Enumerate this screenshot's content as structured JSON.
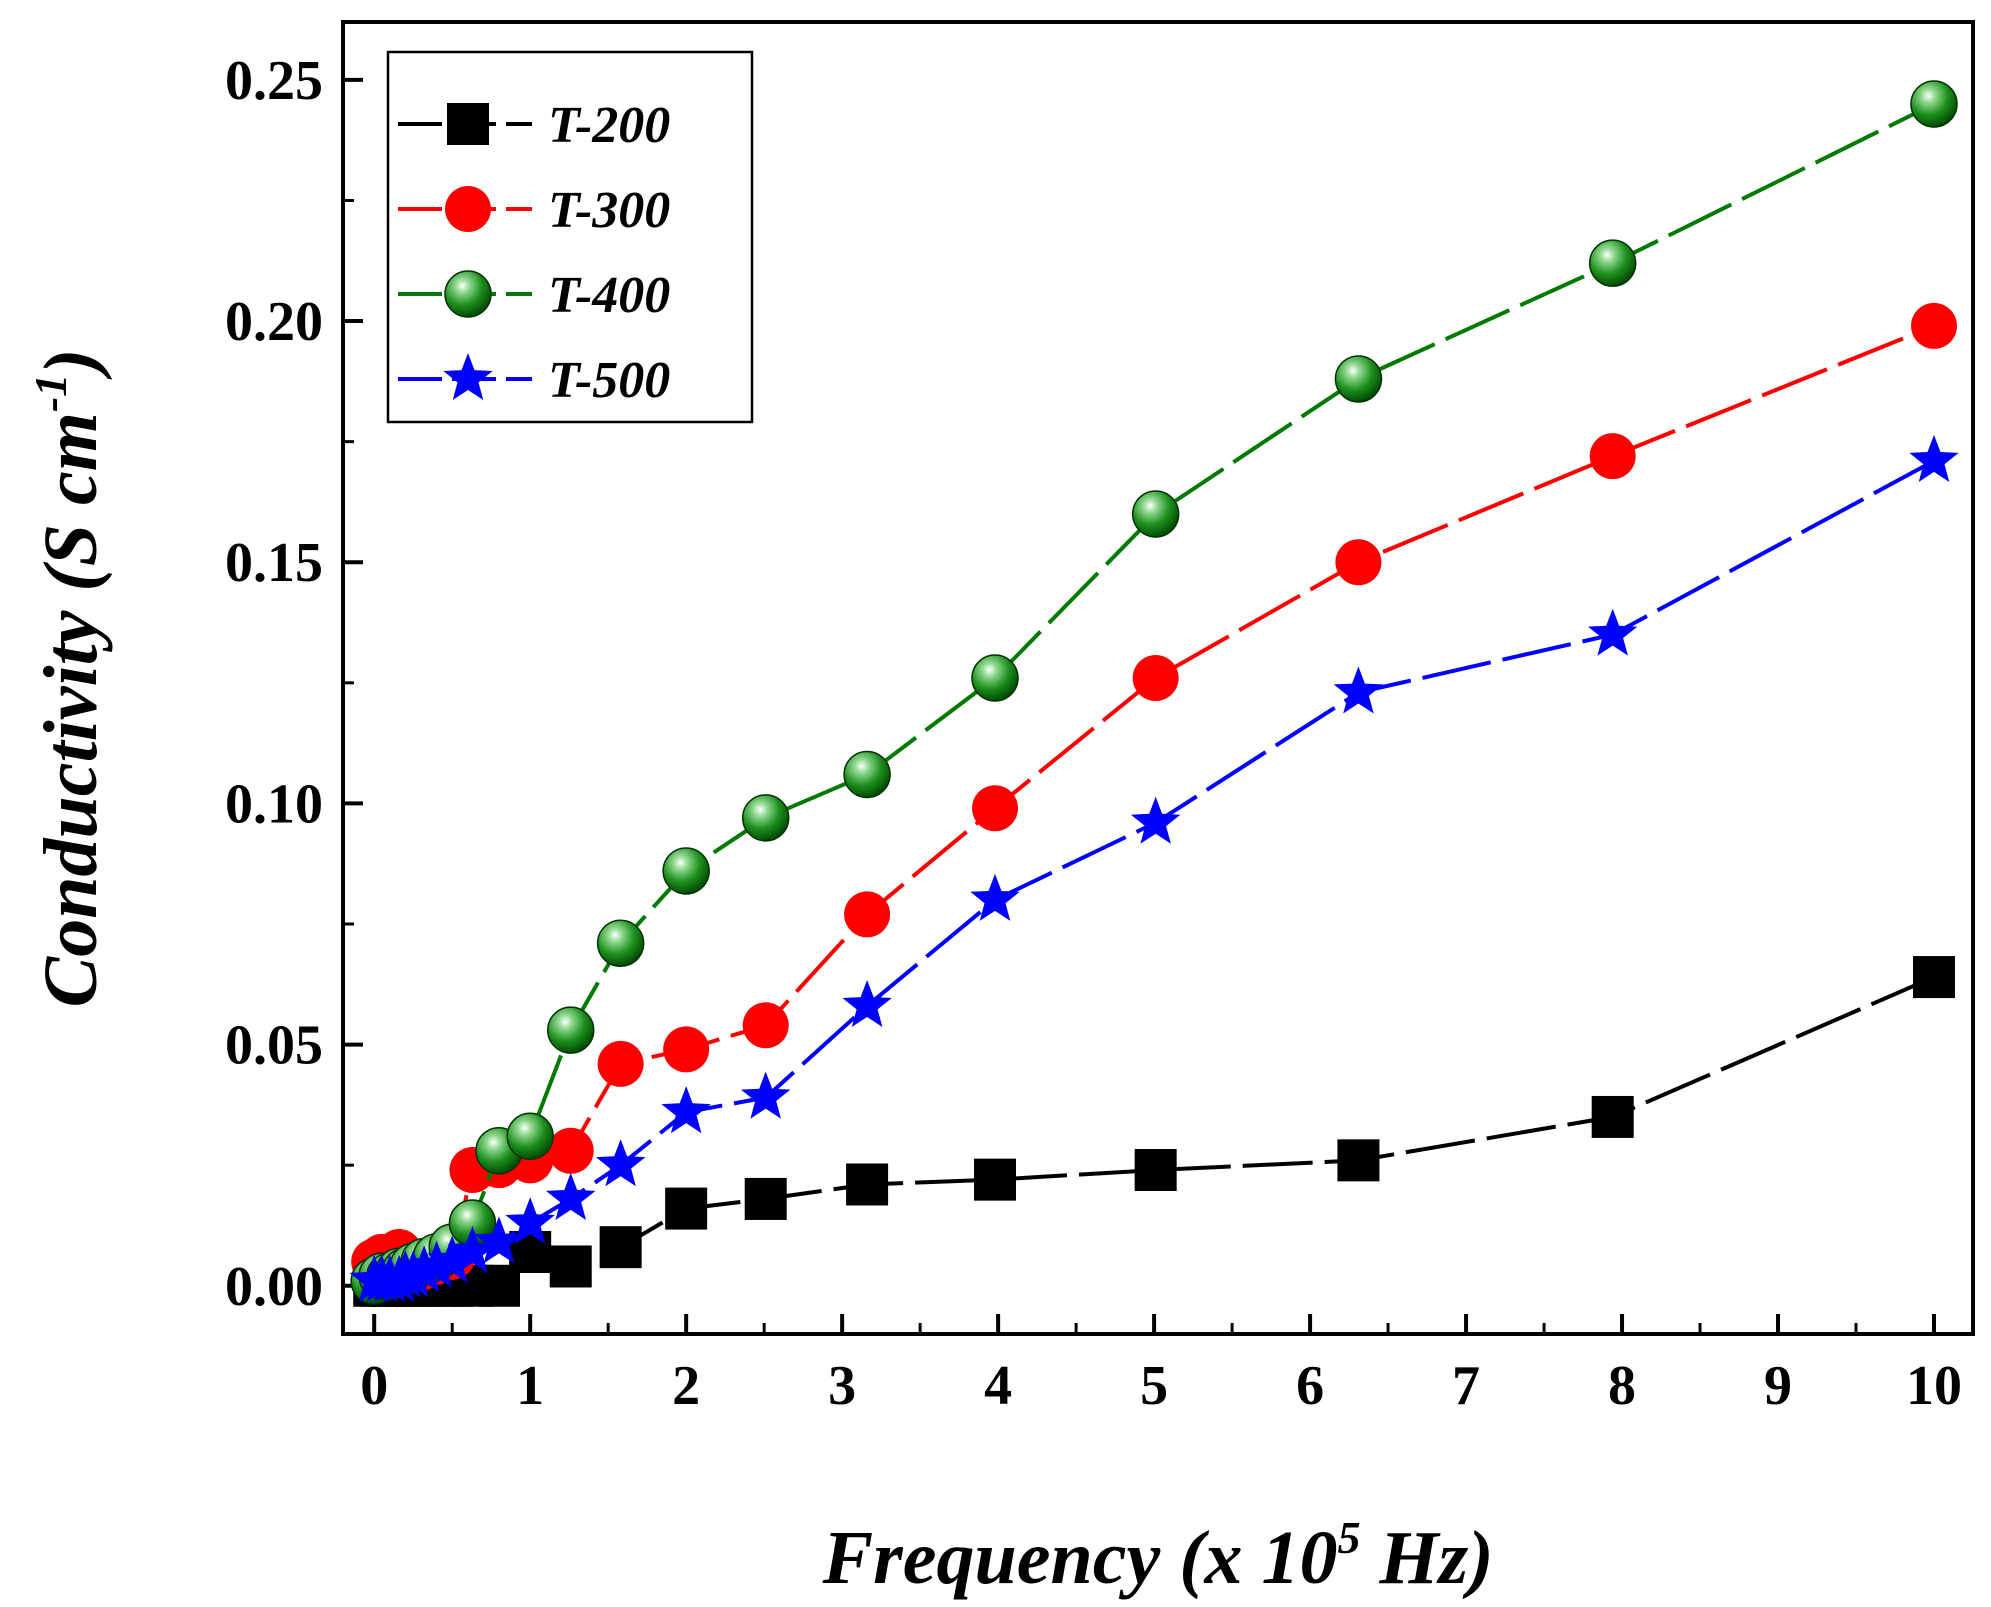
{
  "chart_data": {
    "type": "line",
    "title": "",
    "xlabel": {
      "main": "Frequency (x 10",
      "sup": "5",
      "end": " Hz)"
    },
    "ylabel": {
      "main": "Conductivity (S cm",
      "sup": "-1",
      "end": ")"
    },
    "xlim": [
      -0.2,
      10.25
    ],
    "ylim": [
      -0.01,
      0.262
    ],
    "x_ticks": [
      0,
      1,
      2,
      3,
      4,
      5,
      6,
      7,
      8,
      9,
      10
    ],
    "x_tick_labels": [
      "0",
      "1",
      "2",
      "3",
      "4",
      "5",
      "6",
      "7",
      "8",
      "9",
      "10"
    ],
    "y_ticks": [
      0.0,
      0.05,
      0.1,
      0.15,
      0.2,
      0.25
    ],
    "y_tick_labels": [
      "0.00",
      "0.05",
      "0.10",
      "0.15",
      "0.20",
      "0.25"
    ],
    "legend_position": "top-left",
    "series": [
      {
        "name": "T-200",
        "color": "#000000",
        "marker": "square",
        "x": [
          0,
          0.05,
          0.1,
          0.16,
          0.2,
          0.25,
          0.32,
          0.4,
          0.5,
          0.63,
          0.8,
          1.0,
          1.26,
          1.58,
          2.0,
          2.51,
          3.16,
          3.98,
          5.01,
          6.31,
          7.94,
          10.0
        ],
        "y": [
          0,
          0,
          0,
          0,
          0,
          0,
          0,
          0,
          0,
          0,
          0,
          0.007,
          0.004,
          0.008,
          0.016,
          0.018,
          0.021,
          0.022,
          0.024,
          0.026,
          0.035,
          0.064
        ]
      },
      {
        "name": "T-300",
        "color": "#ff0000",
        "marker": "circle",
        "x": [
          0,
          0.05,
          0.1,
          0.16,
          0.2,
          0.25,
          0.32,
          0.4,
          0.5,
          0.63,
          0.8,
          1.0,
          1.26,
          1.58,
          2.0,
          2.51,
          3.16,
          3.98,
          5.01,
          6.31,
          7.94,
          10.0
        ],
        "y": [
          0.005,
          0.006,
          0.006,
          0.007,
          0.005,
          0.004,
          0.004,
          0.005,
          0.006,
          0.024,
          0.025,
          0.026,
          0.028,
          0.046,
          0.049,
          0.054,
          0.077,
          0.099,
          0.126,
          0.15,
          0.172,
          0.199
        ]
      },
      {
        "name": "T-400",
        "color": "#007a00",
        "marker": "sphere",
        "x": [
          0,
          0.05,
          0.1,
          0.16,
          0.2,
          0.25,
          0.32,
          0.4,
          0.5,
          0.63,
          0.8,
          1.0,
          1.26,
          1.58,
          2.0,
          2.51,
          3.16,
          3.98,
          5.01,
          6.31,
          7.94,
          10.0
        ],
        "y": [
          0.001,
          0.002,
          0.002,
          0.003,
          0.003,
          0.004,
          0.005,
          0.006,
          0.008,
          0.013,
          0.028,
          0.031,
          0.053,
          0.071,
          0.086,
          0.097,
          0.106,
          0.126,
          0.16,
          0.188,
          0.212,
          0.245
        ]
      },
      {
        "name": "T-500",
        "color": "#0000ff",
        "marker": "star",
        "x": [
          0,
          0.05,
          0.1,
          0.16,
          0.2,
          0.25,
          0.32,
          0.4,
          0.5,
          0.63,
          0.8,
          1.0,
          1.26,
          1.58,
          2.0,
          2.51,
          3.16,
          3.98,
          5.01,
          6.31,
          7.94,
          10.0
        ],
        "y": [
          0.001,
          0.001,
          0.001,
          0.001,
          0.002,
          0.002,
          0.003,
          0.004,
          0.005,
          0.007,
          0.009,
          0.013,
          0.018,
          0.025,
          0.036,
          0.039,
          0.058,
          0.08,
          0.096,
          0.123,
          0.135,
          0.171
        ]
      }
    ]
  }
}
